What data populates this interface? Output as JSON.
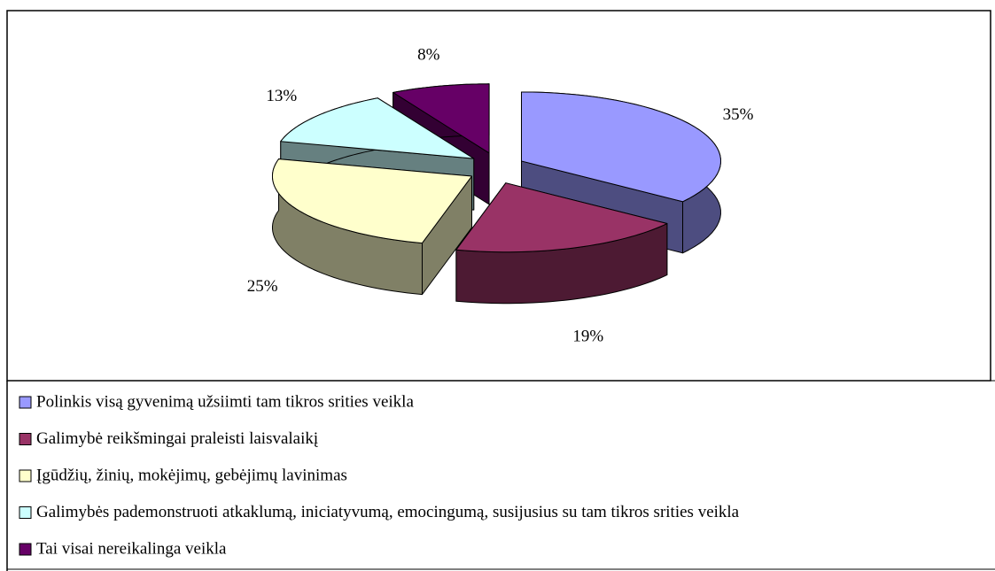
{
  "chart_data": {
    "type": "pie",
    "categories": [
      "Polinkis visą gyvenimą užsiimti tam tikros srities veikla",
      "Galimybė reikšmingai praleisti laisvalaikį",
      "Įgūdžių, žinių, mokėjimų, gebėjimų  lavinimas",
      "Galimybės pademonstruoti atkaklumą, iniciatyvumą, emocingumą, susijusius su tam tikros srities veikla",
      "Tai visai nereikalinga veikla"
    ],
    "values": [
      35,
      19,
      25,
      13,
      8
    ],
    "value_labels": [
      "35%",
      "19%",
      "25%",
      "13%",
      "8%"
    ],
    "colors": [
      "#9999ff",
      "#993366",
      "#ffffcc",
      "#ccffff",
      "#660066"
    ],
    "legend": "bottom"
  }
}
